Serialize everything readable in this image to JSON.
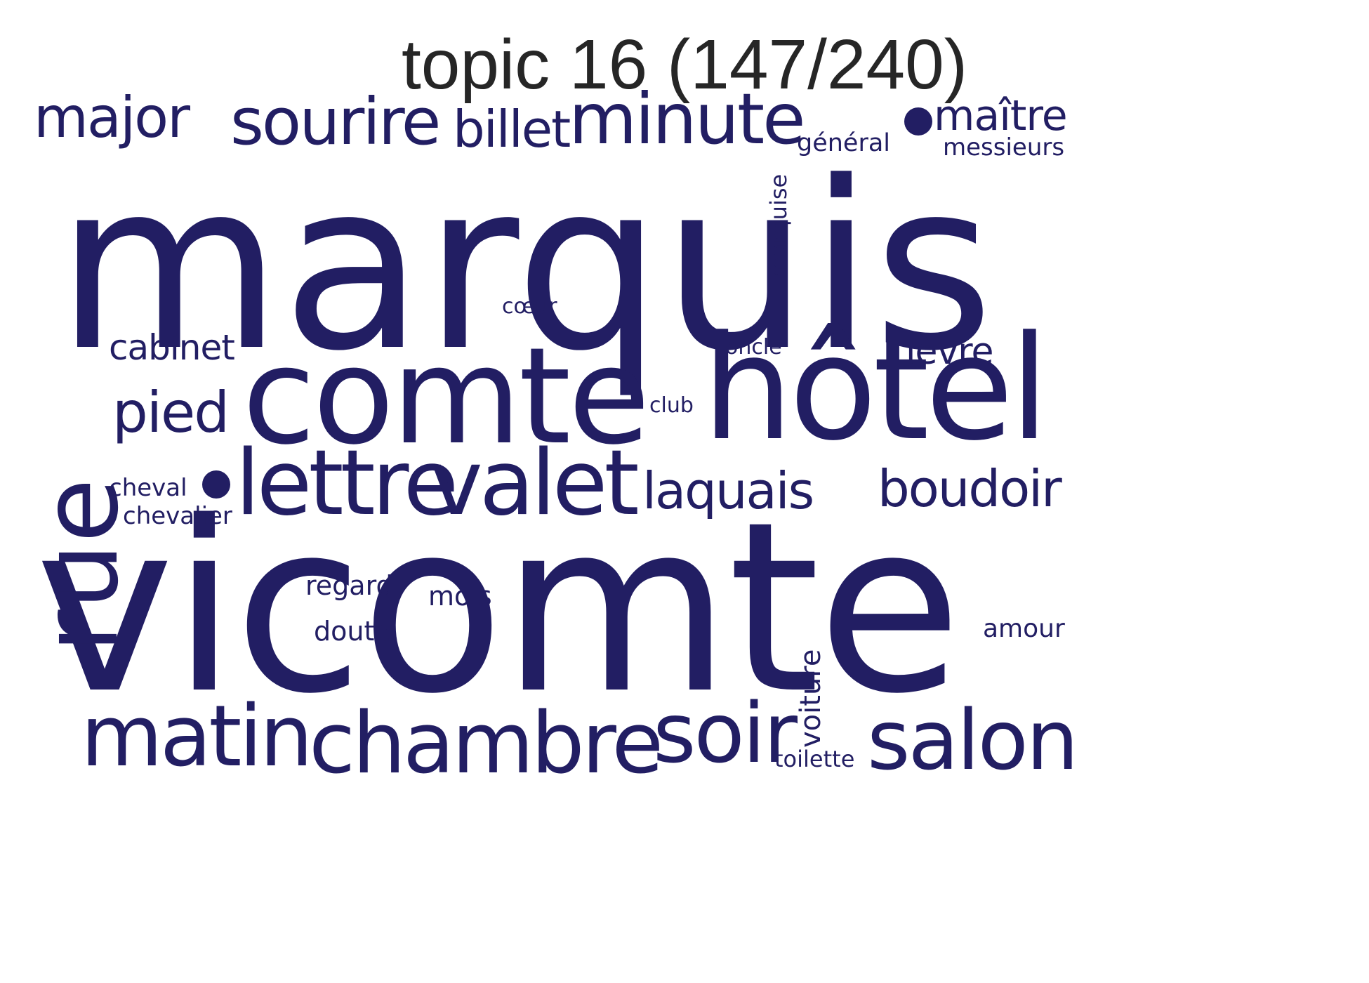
{
  "title": "topic 16 (147/240)",
  "color": "#221e63",
  "words": [
    {
      "text": "marquis",
      "weight": 100
    },
    {
      "text": "vicomte",
      "weight": 98
    },
    {
      "text": "comte",
      "weight": 45
    },
    {
      "text": "hôtel",
      "weight": 44
    },
    {
      "text": "rue",
      "weight": 40
    },
    {
      "text": "lettre",
      "weight": 28
    },
    {
      "text": "valet",
      "weight": 28
    },
    {
      "text": "chambre",
      "weight": 26
    },
    {
      "text": "matin",
      "weight": 26
    },
    {
      "text": "soir",
      "weight": 26
    },
    {
      "text": "salon",
      "weight": 25
    },
    {
      "text": "minute",
      "weight": 25
    },
    {
      "text": "sourire",
      "weight": 22
    },
    {
      "text": "major",
      "weight": 20
    },
    {
      "text": "billet",
      "weight": 18
    },
    {
      "text": "pied",
      "weight": 18
    },
    {
      "text": "boudoir",
      "weight": 17
    },
    {
      "text": "laquais",
      "weight": 17
    },
    {
      "text": "maître",
      "weight": 15
    },
    {
      "text": "cabinet",
      "weight": 13
    },
    {
      "text": "lèvre",
      "weight": 13
    },
    {
      "text": "voiture",
      "weight": 10
    },
    {
      "text": "marquise",
      "weight": 9
    },
    {
      "text": "regard",
      "weight": 10
    },
    {
      "text": "mois",
      "weight": 10
    },
    {
      "text": "doute",
      "weight": 10
    },
    {
      "text": "amour",
      "weight": 9
    },
    {
      "text": "cheval",
      "weight": 9
    },
    {
      "text": "chevalier",
      "weight": 9
    },
    {
      "text": "messieurs",
      "weight": 9
    },
    {
      "text": "général",
      "weight": 9
    },
    {
      "text": "toilette",
      "weight": 8
    },
    {
      "text": "cœur",
      "weight": 8
    },
    {
      "text": "oncle",
      "weight": 8
    },
    {
      "text": "club",
      "weight": 8
    }
  ]
}
